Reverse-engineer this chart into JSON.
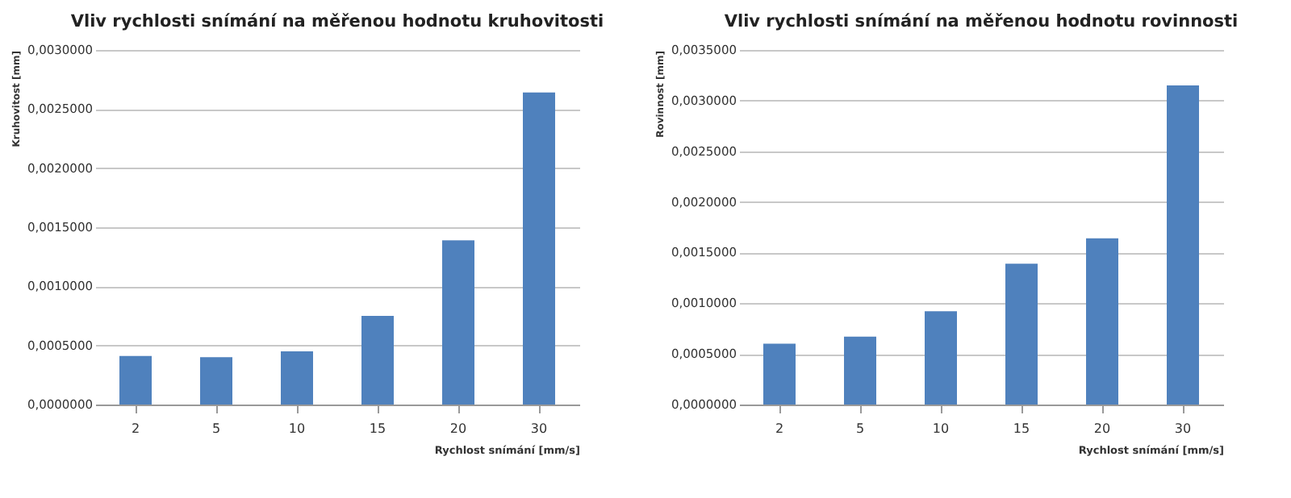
{
  "chart_data": [
    {
      "type": "bar",
      "title": "Vliv rychlosti snímání na měřenou hodnotu kruhovitosti",
      "xlabel": "Rychlost snímání [mm/s]",
      "ylabel": "Kruhovitost [mm]",
      "categories": [
        "2",
        "5",
        "10",
        "15",
        "20",
        "30"
      ],
      "values": [
        0.00041,
        0.0004,
        0.00045,
        0.00075,
        0.00139,
        0.00264
      ],
      "color": "#4f81bd",
      "ylim": [
        0,
        0.003
      ],
      "yticks": [
        {
          "value": 0,
          "label": "0,0000000"
        },
        {
          "value": 0.0005,
          "label": "0,0005000"
        },
        {
          "value": 0.001,
          "label": "0,0010000"
        },
        {
          "value": 0.0015,
          "label": "0,0015000"
        },
        {
          "value": 0.002,
          "label": "0,0020000"
        },
        {
          "value": 0.0025,
          "label": "0,0025000"
        },
        {
          "value": 0.003,
          "label": "0,0030000"
        }
      ],
      "grid": "y"
    },
    {
      "type": "bar",
      "title": "Vliv rychlosti snímání na měřenou hodnotu rovinnosti",
      "xlabel": "Rychlost snímání [mm/s]",
      "ylabel": "Rovinnost [mm]",
      "categories": [
        "2",
        "5",
        "10",
        "15",
        "20",
        "30"
      ],
      "values": [
        0.0006,
        0.00067,
        0.00092,
        0.00139,
        0.00164,
        0.00315
      ],
      "color": "#4f81bd",
      "ylim": [
        0,
        0.0035
      ],
      "yticks": [
        {
          "value": 0,
          "label": "0,0000000"
        },
        {
          "value": 0.0005,
          "label": "0,0005000"
        },
        {
          "value": 0.001,
          "label": "0,0010000"
        },
        {
          "value": 0.0015,
          "label": "0,0015000"
        },
        {
          "value": 0.002,
          "label": "0,0020000"
        },
        {
          "value": 0.0025,
          "label": "0,0025000"
        },
        {
          "value": 0.003,
          "label": "0,0030000"
        },
        {
          "value": 0.0035,
          "label": "0,0035000"
        }
      ],
      "grid": "y"
    }
  ]
}
